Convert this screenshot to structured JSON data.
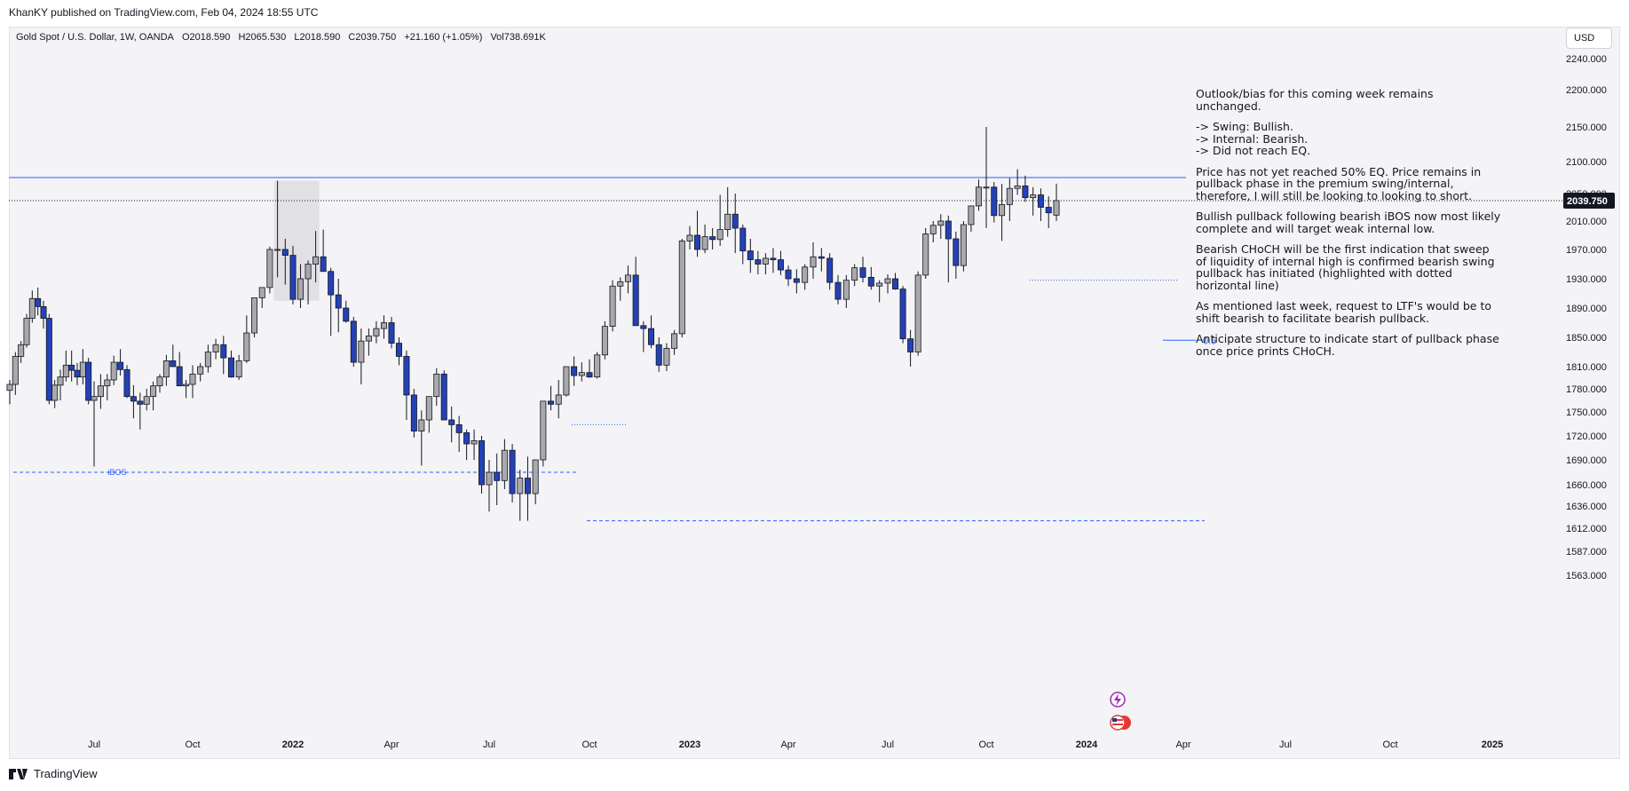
{
  "header": {
    "published": "KhanKY published on TradingView.com, Feb 04, 2024 18:55 UTC"
  },
  "legend": {
    "symbol": "Gold Spot / U.S. Dollar, 1W, OANDA",
    "open": "O2018.590",
    "high": "H2065.530",
    "low": "L2018.590",
    "close": "C2039.750",
    "change": "+21.160 (+1.05%)",
    "volume": "Vol738.691K"
  },
  "currency": "USD",
  "annotations": {
    "note": [
      "Outlook/bias for this coming week remains unchanged.",
      "-> Swing: Bullish.\n-> Internal: Bearish.\n-> Did not reach EQ.",
      "Price has not yet reached 50% EQ. Price remains in pullback phase in the premium swing/internal, therefore, I will still be looking to looking to short.",
      "Bullish pullback following bearish iBOS now most likely complete and will target weak internal low.",
      "Bearish CHoCH will be the first indication that sweep of liquidity of internal high is confirmed bearish swing pullback has initiated (highlighted with dotted horizontal line)",
      "As mentioned last week, request to LTF's would be to shift bearish to facilitate bearish pullback.",
      "Anticipate structure to indicate start of pullback phase once price prints CHoCH."
    ],
    "ibos_label": "iBOS",
    "eq_label": "0.5"
  },
  "colors": {
    "bull_body": "#a9a9ad",
    "bear_body": "#2441b5",
    "candle_outline": "#131722",
    "level_line": "#2962ff",
    "price_tag": "#131722",
    "zone": "#e1e0e4",
    "background": "#f4f3f5"
  },
  "footer": {
    "brand": "TradingView"
  },
  "chart_data": {
    "type": "candlestick",
    "title": "Gold Spot / U.S. Dollar, 1W, OANDA",
    "currency": "USD",
    "timeframe": "1W",
    "last_price": "2039.750",
    "ylim": [
      1548,
      2258
    ],
    "y_ticks": [
      "2240.000",
      "2200.000",
      "2150.000",
      "2100.000",
      "2050.000",
      "2010.000",
      "1970.000",
      "1930.000",
      "1890.000",
      "1850.000",
      "1810.000",
      "1780.000",
      "1750.000",
      "1720.000",
      "1690.000",
      "1660.000",
      "1636.000",
      "1612.000",
      "1587.000",
      "1563.000"
    ],
    "x_ticks": [
      "Jul",
      "Oct",
      "2022",
      "Apr",
      "Jul",
      "Oct",
      "2023",
      "Apr",
      "Jul",
      "Oct",
      "2024",
      "Apr",
      "Jul",
      "Oct",
      "2025"
    ],
    "ohlc": [
      [
        1778,
        1792,
        1760,
        1786
      ],
      [
        1786,
        1830,
        1772,
        1824
      ],
      [
        1824,
        1845,
        1815,
        1840
      ],
      [
        1840,
        1882,
        1836,
        1876
      ],
      [
        1876,
        1914,
        1870,
        1903
      ],
      [
        1903,
        1918,
        1880,
        1892
      ],
      [
        1892,
        1900,
        1862,
        1876
      ],
      [
        1876,
        1882,
        1760,
        1765
      ],
      [
        1765,
        1792,
        1755,
        1785
      ],
      [
        1785,
        1806,
        1765,
        1796
      ],
      [
        1796,
        1832,
        1790,
        1812
      ],
      [
        1812,
        1832,
        1790,
        1805
      ],
      [
        1805,
        1815,
        1785,
        1796
      ],
      [
        1796,
        1834,
        1786,
        1816
      ],
      [
        1816,
        1822,
        1760,
        1765
      ],
      [
        1765,
        1790,
        1682,
        1770
      ],
      [
        1770,
        1800,
        1754,
        1784
      ],
      [
        1784,
        1800,
        1765,
        1792
      ],
      [
        1792,
        1825,
        1785,
        1816
      ],
      [
        1816,
        1834,
        1798,
        1806
      ],
      [
        1806,
        1812,
        1768,
        1770
      ],
      [
        1770,
        1785,
        1742,
        1764
      ],
      [
        1764,
        1775,
        1728,
        1760
      ],
      [
        1760,
        1780,
        1752,
        1770
      ],
      [
        1770,
        1790,
        1752,
        1784
      ],
      [
        1784,
        1800,
        1775,
        1796
      ],
      [
        1796,
        1826,
        1784,
        1818
      ],
      [
        1818,
        1840,
        1812,
        1810
      ],
      [
        1810,
        1830,
        1790,
        1784
      ],
      [
        1784,
        1792,
        1768,
        1786
      ],
      [
        1786,
        1812,
        1768,
        1800
      ],
      [
        1800,
        1815,
        1790,
        1810
      ],
      [
        1810,
        1840,
        1802,
        1830
      ],
      [
        1830,
        1848,
        1820,
        1840
      ],
      [
        1840,
        1852,
        1800,
        1822
      ],
      [
        1822,
        1832,
        1795,
        1796
      ],
      [
        1796,
        1826,
        1792,
        1818
      ],
      [
        1818,
        1880,
        1815,
        1856
      ],
      [
        1856,
        1900,
        1850,
        1904
      ],
      [
        1904,
        1918,
        1890,
        1918
      ],
      [
        1918,
        1974,
        1910,
        1970
      ],
      [
        1970,
        2070,
        1932,
        1970
      ],
      [
        1970,
        1985,
        1922,
        1962
      ],
      [
        1962,
        1975,
        1895,
        1902
      ],
      [
        1902,
        1950,
        1890,
        1930
      ],
      [
        1930,
        1955,
        1895,
        1950
      ],
      [
        1950,
        1996,
        1925,
        1960
      ],
      [
        1960,
        1998,
        1940,
        1940
      ],
      [
        1940,
        1945,
        1852,
        1908
      ],
      [
        1908,
        1930,
        1857,
        1890
      ],
      [
        1890,
        1900,
        1870,
        1872
      ],
      [
        1872,
        1878,
        1810,
        1816
      ],
      [
        1816,
        1862,
        1786,
        1845
      ],
      [
        1845,
        1862,
        1825,
        1852
      ],
      [
        1852,
        1872,
        1842,
        1862
      ],
      [
        1862,
        1880,
        1848,
        1870
      ],
      [
        1870,
        1878,
        1835,
        1842
      ],
      [
        1842,
        1850,
        1812,
        1824
      ],
      [
        1824,
        1832,
        1740,
        1772
      ],
      [
        1772,
        1780,
        1718,
        1726
      ],
      [
        1726,
        1752,
        1683,
        1740
      ],
      [
        1740,
        1770,
        1724,
        1770
      ],
      [
        1770,
        1808,
        1758,
        1800
      ],
      [
        1800,
        1805,
        1745,
        1740
      ],
      [
        1740,
        1757,
        1712,
        1734
      ],
      [
        1734,
        1745,
        1700,
        1724
      ],
      [
        1724,
        1728,
        1690,
        1710
      ],
      [
        1710,
        1728,
        1690,
        1714
      ],
      [
        1714,
        1720,
        1650,
        1660
      ],
      [
        1660,
        1690,
        1630,
        1675
      ],
      [
        1675,
        1698,
        1637,
        1665
      ],
      [
        1665,
        1716,
        1655,
        1702
      ],
      [
        1702,
        1710,
        1640,
        1650
      ],
      [
        1650,
        1678,
        1620,
        1668
      ],
      [
        1668,
        1694,
        1620,
        1650
      ],
      [
        1650,
        1690,
        1638,
        1690
      ],
      [
        1690,
        1764,
        1682,
        1764
      ],
      [
        1764,
        1784,
        1752,
        1760
      ],
      [
        1760,
        1792,
        1742,
        1772
      ],
      [
        1772,
        1810,
        1770,
        1810
      ],
      [
        1810,
        1824,
        1784,
        1798
      ],
      [
        1798,
        1816,
        1790,
        1802
      ],
      [
        1802,
        1820,
        1795,
        1796
      ],
      [
        1796,
        1830,
        1794,
        1826
      ],
      [
        1826,
        1872,
        1820,
        1865
      ],
      [
        1865,
        1928,
        1858,
        1920
      ],
      [
        1920,
        1932,
        1900,
        1926
      ],
      [
        1926,
        1948,
        1910,
        1935
      ],
      [
        1935,
        1960,
        1866,
        1866
      ],
      [
        1866,
        1872,
        1830,
        1862
      ],
      [
        1862,
        1880,
        1835,
        1840
      ],
      [
        1840,
        1850,
        1803,
        1812
      ],
      [
        1812,
        1842,
        1804,
        1835
      ],
      [
        1835,
        1860,
        1826,
        1855
      ],
      [
        1855,
        1985,
        1850,
        1982
      ],
      [
        1982,
        2003,
        1970,
        1990
      ],
      [
        1990,
        2025,
        1960,
        1970
      ],
      [
        1970,
        2005,
        1965,
        1988
      ],
      [
        1988,
        2000,
        1970,
        1984
      ],
      [
        1984,
        2048,
        1975,
        1998
      ],
      [
        1998,
        2060,
        1988,
        2020
      ],
      [
        2020,
        2050,
        1965,
        2000
      ],
      [
        2000,
        2005,
        1950,
        1968
      ],
      [
        1968,
        1985,
        1938,
        1956
      ],
      [
        1956,
        1968,
        1936,
        1950
      ],
      [
        1950,
        1965,
        1936,
        1958
      ],
      [
        1958,
        1972,
        1938,
        1956
      ],
      [
        1956,
        1968,
        1935,
        1942
      ],
      [
        1942,
        1948,
        1920,
        1930
      ],
      [
        1930,
        1943,
        1910,
        1925
      ],
      [
        1925,
        1950,
        1915,
        1946
      ],
      [
        1946,
        1980,
        1930,
        1960
      ],
      [
        1960,
        1972,
        1940,
        1958
      ],
      [
        1958,
        1965,
        1915,
        1925
      ],
      [
        1925,
        1935,
        1895,
        1902
      ],
      [
        1902,
        1935,
        1890,
        1928
      ],
      [
        1928,
        1950,
        1920,
        1945
      ],
      [
        1945,
        1960,
        1925,
        1932
      ],
      [
        1932,
        1946,
        1915,
        1920
      ],
      [
        1920,
        1928,
        1898,
        1924
      ],
      [
        1924,
        1936,
        1910,
        1930
      ],
      [
        1930,
        1938,
        1915,
        1916
      ],
      [
        1916,
        1920,
        1842,
        1848
      ],
      [
        1848,
        1860,
        1810,
        1830
      ],
      [
        1830,
        1940,
        1825,
        1935
      ],
      [
        1935,
        2000,
        1930,
        1992
      ],
      [
        1992,
        2010,
        1980,
        2004
      ],
      [
        2004,
        2020,
        1985,
        2010
      ],
      [
        2010,
        2018,
        1925,
        1985
      ],
      [
        1985,
        1995,
        1930,
        1948
      ],
      [
        1948,
        2010,
        1940,
        2005
      ],
      [
        2005,
        2028,
        1995,
        2032
      ],
      [
        2032,
        2072,
        2025,
        2060
      ],
      [
        2060,
        2150,
        2000,
        2060
      ],
      [
        2060,
        2068,
        2008,
        2018
      ],
      [
        2018,
        2065,
        1982,
        2034
      ],
      [
        2034,
        2074,
        2010,
        2058
      ],
      [
        2058,
        2088,
        2048,
        2062
      ],
      [
        2062,
        2078,
        2038,
        2044
      ],
      [
        2044,
        2060,
        2018,
        2048
      ],
      [
        2048,
        2058,
        2010,
        2030
      ],
      [
        2030,
        2046,
        2000,
        2022
      ],
      [
        2022,
        2045,
        2010,
        2028
      ],
      [
        2018.59,
        2065.53,
        2018.59,
        2039.75
      ]
    ]
  }
}
